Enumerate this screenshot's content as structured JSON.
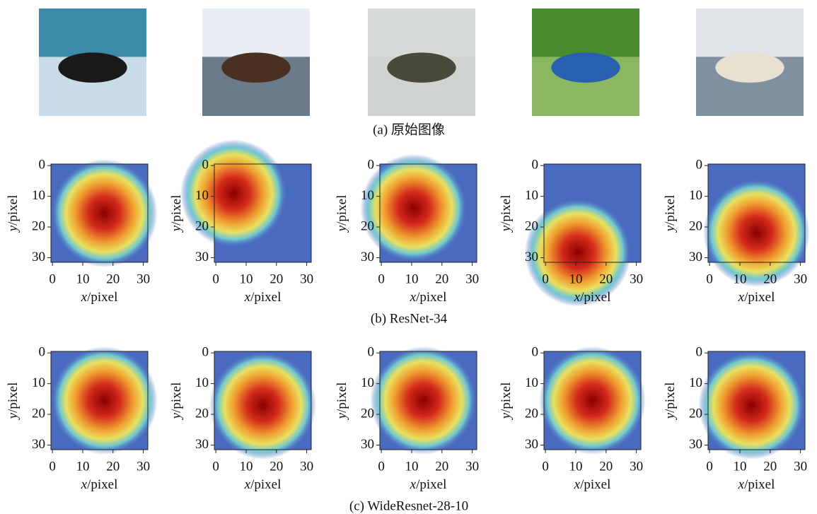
{
  "axes": {
    "x_var": "x",
    "x_unit": "/pixel",
    "y_var": "y",
    "y_unit": "/pixel",
    "xlim": [
      -0.5,
      31.5
    ],
    "ylim": [
      31.5,
      -0.5
    ],
    "xticks": [
      0,
      10,
      20,
      30
    ],
    "yticks": [
      0,
      10,
      20,
      30
    ]
  },
  "rows": [
    {
      "caption": "(a) 原始图像"
    },
    {
      "caption": "(b) ResNet-34"
    },
    {
      "caption": "(c) WideResnet-28-10"
    }
  ]
}
